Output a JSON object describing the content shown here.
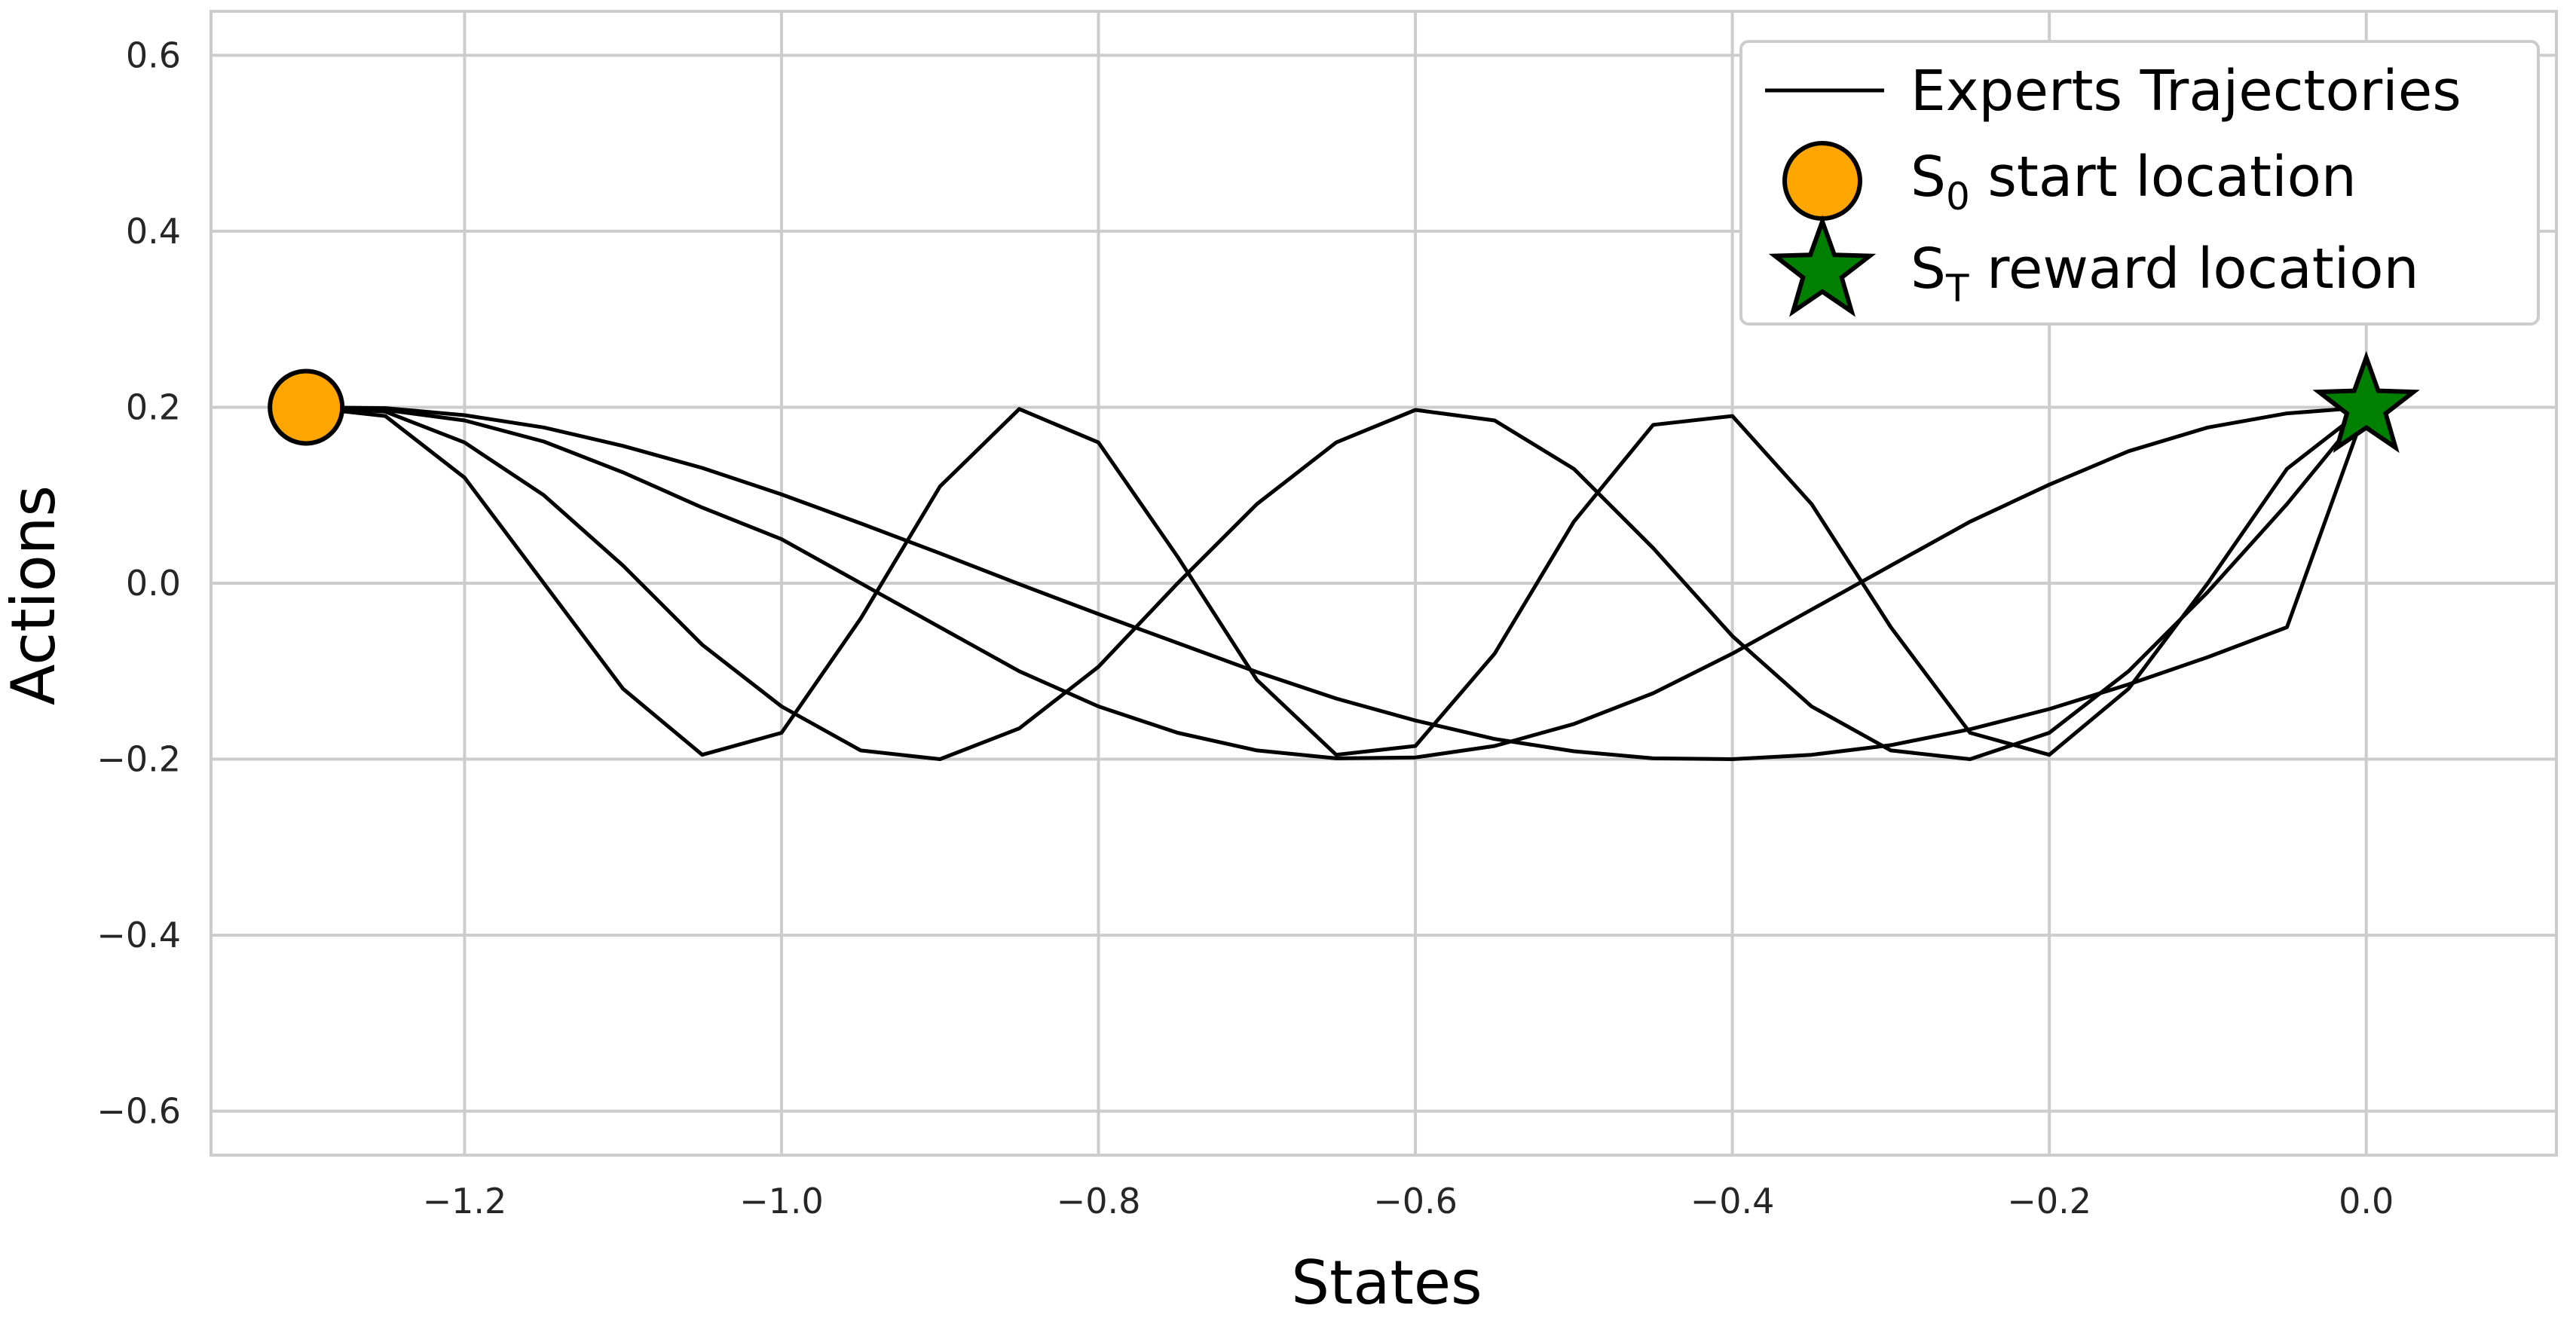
{
  "chart_data": {
    "type": "line",
    "title": "",
    "xlabel": "States",
    "ylabel": "Actions",
    "xlim": [
      -1.36,
      0.12
    ],
    "ylim": [
      -0.65,
      0.65
    ],
    "x_ticks": [
      -1.2,
      -1.0,
      -0.8,
      -0.6,
      -0.4,
      -0.2,
      0.0
    ],
    "x_tick_labels": [
      "−1.2",
      "−1.0",
      "−0.8",
      "−0.6",
      "−0.4",
      "−0.2",
      "0.0"
    ],
    "y_ticks": [
      -0.6,
      -0.4,
      -0.2,
      0.0,
      0.2,
      0.4,
      0.6
    ],
    "y_tick_labels": [
      "−0.6",
      "−0.4",
      "−0.2",
      "0.0",
      "0.2",
      "0.4",
      "0.6"
    ],
    "grid": true,
    "legend_position": "top-right",
    "series": [
      {
        "name": "Experts Trajectories",
        "color": "#000000",
        "trajectories": [
          {
            "x": [
              -1.3,
              -1.25,
              -1.2,
              -1.15,
              -1.1,
              -1.05,
              -1.0,
              -0.95,
              -0.9,
              -0.85,
              -0.8,
              -0.75,
              -0.7,
              -0.65,
              -0.6,
              -0.55,
              -0.5,
              -0.45,
              -0.4,
              -0.35,
              -0.3,
              -0.25,
              -0.2,
              -0.15,
              -0.1,
              -0.05,
              0.0
            ],
            "y": [
              0.2,
              0.199,
              0.191,
              0.177,
              0.156,
              0.131,
              0.101,
              0.068,
              0.034,
              -0.001,
              -0.035,
              -0.068,
              -0.101,
              -0.131,
              -0.156,
              -0.177,
              -0.191,
              -0.199,
              -0.2,
              -0.195,
              -0.184,
              -0.166,
              -0.143,
              -0.115,
              -0.084,
              -0.05,
              0.2
            ]
          },
          {
            "x": [
              -1.3,
              -1.25,
              -1.2,
              -1.15,
              -1.1,
              -1.05,
              -1.0,
              -0.95,
              -0.9,
              -0.85,
              -0.8,
              -0.75,
              -0.7,
              -0.65,
              -0.6,
              -0.55,
              -0.5,
              -0.45,
              -0.4,
              -0.35,
              -0.3,
              -0.25,
              -0.2,
              -0.15,
              -0.1,
              -0.05,
              0.0
            ],
            "y": [
              0.2,
              0.197,
              0.185,
              0.161,
              0.126,
              0.086,
              0.05,
              0.0,
              -0.05,
              -0.1,
              -0.14,
              -0.17,
              -0.19,
              -0.199,
              -0.198,
              -0.185,
              -0.16,
              -0.125,
              -0.08,
              -0.03,
              0.02,
              0.07,
              0.112,
              0.15,
              0.177,
              0.193,
              0.2
            ]
          },
          {
            "x": [
              -1.3,
              -1.25,
              -1.2,
              -1.15,
              -1.1,
              -1.05,
              -1.0,
              -0.95,
              -0.9,
              -0.85,
              -0.8,
              -0.75,
              -0.7,
              -0.65,
              -0.6,
              -0.55,
              -0.5,
              -0.45,
              -0.4,
              -0.35,
              -0.3,
              -0.25,
              -0.2,
              -0.15,
              -0.1,
              -0.05,
              0.0
            ],
            "y": [
              0.2,
              0.195,
              0.16,
              0.1,
              0.02,
              -0.07,
              -0.14,
              -0.19,
              -0.2,
              -0.165,
              -0.095,
              0.0,
              0.09,
              0.16,
              0.197,
              0.185,
              0.13,
              0.04,
              -0.06,
              -0.14,
              -0.19,
              -0.2,
              -0.17,
              -0.1,
              -0.01,
              0.09,
              0.2
            ]
          },
          {
            "x": [
              -1.3,
              -1.25,
              -1.2,
              -1.15,
              -1.1,
              -1.05,
              -1.0,
              -0.95,
              -0.9,
              -0.85,
              -0.8,
              -0.75,
              -0.7,
              -0.65,
              -0.6,
              -0.55,
              -0.5,
              -0.45,
              -0.4,
              -0.35,
              -0.3,
              -0.25,
              -0.2,
              -0.15,
              -0.1,
              -0.05,
              0.0
            ],
            "y": [
              0.2,
              0.19,
              0.12,
              0.0,
              -0.12,
              -0.195,
              -0.17,
              -0.04,
              0.11,
              0.198,
              0.16,
              0.03,
              -0.11,
              -0.195,
              -0.185,
              -0.08,
              0.07,
              0.18,
              0.19,
              0.09,
              -0.05,
              -0.17,
              -0.195,
              -0.12,
              0.0,
              0.13,
              0.2
            ]
          }
        ]
      },
      {
        "name": "S0 start location",
        "name_main": "S",
        "name_sub": "0",
        "name_rest": " start location",
        "marker": "circle",
        "color": "#FFA500",
        "x": [
          -1.3
        ],
        "y": [
          0.2
        ]
      },
      {
        "name": "ST reward location",
        "name_main": "S",
        "name_sub": "T",
        "name_rest": " reward location",
        "marker": "star",
        "color": "#008000",
        "x": [
          0.0
        ],
        "y": [
          0.2
        ]
      }
    ]
  }
}
